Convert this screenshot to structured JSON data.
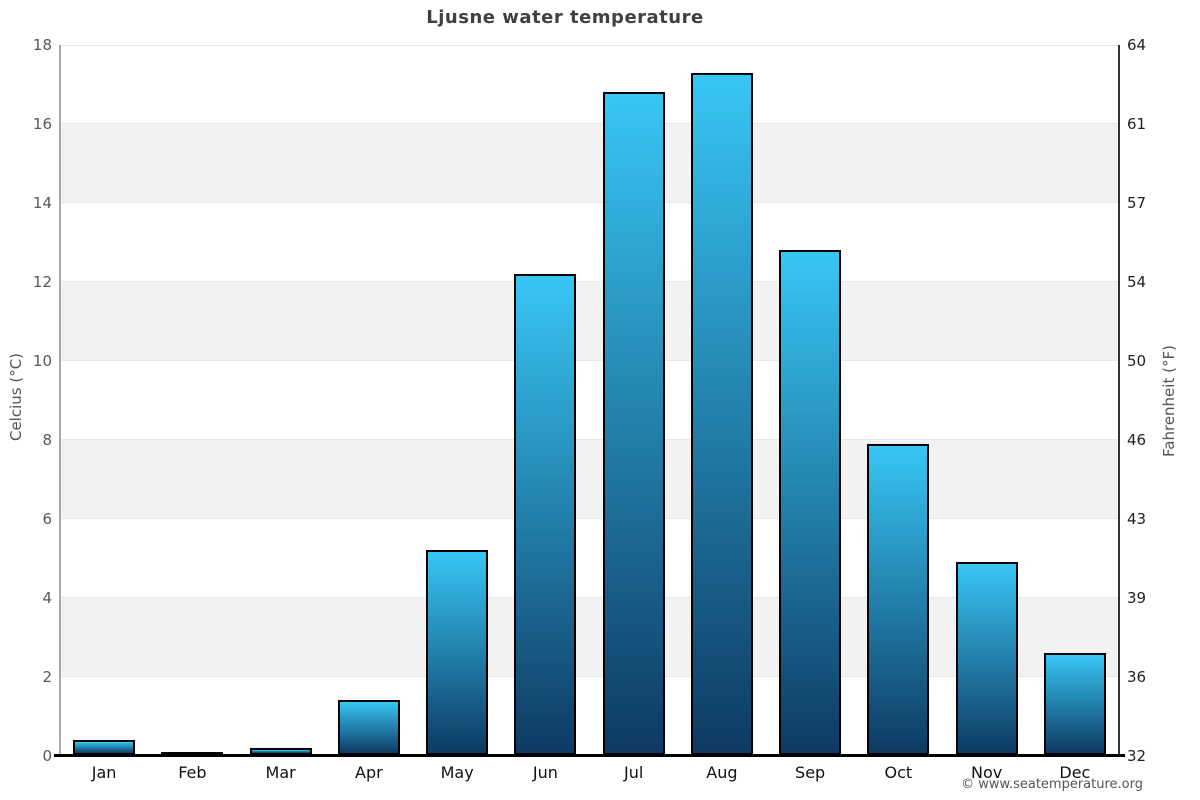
{
  "chart_data": {
    "type": "bar",
    "title": "Ljusne water temperature",
    "categories": [
      "Jan",
      "Feb",
      "Mar",
      "Apr",
      "May",
      "Jun",
      "Jul",
      "Aug",
      "Sep",
      "Oct",
      "Nov",
      "Dec"
    ],
    "values": [
      0.4,
      0.1,
      0.2,
      1.4,
      5.2,
      12.2,
      16.8,
      17.3,
      12.8,
      7.9,
      4.9,
      2.6
    ],
    "unit": "°C",
    "xlabel": "",
    "ylabel_left": "Celcius (°C)",
    "ylabel_right": "Fahrenheit (°F)",
    "ylim": [
      0,
      18
    ],
    "grid": true,
    "legend": null,
    "y_axis_left": {
      "label": "Celcius (°C)",
      "ticks": [
        0,
        2,
        4,
        6,
        8,
        10,
        12,
        14,
        16,
        18
      ]
    },
    "y_axis_right": {
      "label": "Fahrenheit (°F)",
      "tick_labels": [
        "32",
        "36",
        "39",
        "43",
        "46",
        "50",
        "54",
        "57",
        "61",
        "64"
      ]
    },
    "shaded_bands": [
      [
        2,
        4
      ],
      [
        6,
        8
      ],
      [
        10,
        12
      ],
      [
        14,
        16
      ]
    ],
    "colors": {
      "bar_gradient_top": "#38c6f4",
      "bar_gradient_bottom": "#0d3a63",
      "bar_border": "#000000",
      "band": "#f2f2f2",
      "gridline": "#e8e8e8",
      "left_axis_line": "#aaaaaa",
      "right_axis_line": "#333333",
      "bottom_axis_line": "#000000",
      "title_color": "#404040"
    }
  },
  "watermark": {
    "text": "© www.seatemperature.org"
  }
}
